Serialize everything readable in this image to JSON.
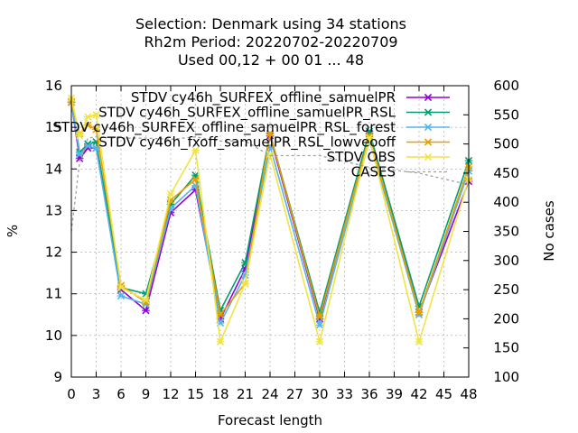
{
  "chart_data": {
    "type": "line",
    "title_lines": [
      "Selection: Denmark using    34 stations",
      "Rh2m   Period: 20220702-20220709",
      "Used  00,12  + 00 01 ... 48"
    ],
    "xlabel": "Forecast length",
    "ylabel": "%",
    "y2label": "No cases",
    "xlim": [
      0,
      48
    ],
    "ylim": [
      9,
      16
    ],
    "y2lim": [
      100,
      600
    ],
    "xticks": [
      0,
      3,
      6,
      9,
      12,
      15,
      18,
      21,
      24,
      27,
      30,
      33,
      36,
      39,
      42,
      45,
      48
    ],
    "yticks": [
      9,
      10,
      11,
      12,
      13,
      14,
      15,
      16
    ],
    "y2ticks": [
      100,
      150,
      200,
      250,
      300,
      350,
      400,
      450,
      500,
      550,
      600
    ],
    "legend_position": "top-right",
    "x": [
      0,
      1,
      2,
      3,
      6,
      9,
      12,
      15,
      18,
      21,
      24,
      30,
      36,
      42,
      48
    ],
    "series": [
      {
        "name": "STDV cy46h_SURFEX_offline_SamuelPR",
        "legend_label": "STDV cy46h_SURFEX_offline_samuelPR",
        "color": "#9400d3",
        "marker": "x",
        "values": [
          15.6,
          14.25,
          14.5,
          14.5,
          11.1,
          10.6,
          12.95,
          13.5,
          10.4,
          11.6,
          14.8,
          10.4,
          14.85,
          10.55,
          13.7
        ]
      },
      {
        "name": "STDV cy46h_SURFEX_offline_SamuelPR_RSL",
        "legend_label": "STDV cy46h_SURFEX_offline_samuelPR_RSL",
        "color": "#009e73",
        "marker": "x",
        "values": [
          15.6,
          14.4,
          14.6,
          14.65,
          11.15,
          11.0,
          13.15,
          13.85,
          10.6,
          11.75,
          14.85,
          10.55,
          14.9,
          10.7,
          14.2
        ]
      },
      {
        "name": "STDV cy46h_SURFEX_offline_SamuelPR_RSL_forest",
        "legend_label": "STDV cy46h_SURFEX_offline_samuelPR_RSL_forest",
        "color": "#56b4e9",
        "marker": "x",
        "values": [
          15.6,
          14.35,
          14.55,
          14.5,
          10.95,
          10.75,
          13.05,
          13.6,
          10.3,
          11.45,
          14.55,
          10.25,
          14.7,
          10.5,
          13.95
        ]
      },
      {
        "name": "STDV cy46h_fxoff_SamuelPR_RSL_lowveooff",
        "legend_label": "STDV cy46h_fxoff_samuelPR_RSL_lowveooff",
        "color": "#e69f00",
        "marker": "x",
        "values": [
          15.6,
          14.85,
          15.05,
          14.95,
          11.2,
          10.8,
          13.25,
          13.75,
          10.5,
          11.25,
          14.85,
          10.45,
          14.8,
          10.55,
          14.05
        ]
      },
      {
        "name": "STDV OBS",
        "legend_label": "STDV OBS",
        "color": "#f0e442",
        "marker": "x",
        "values": [
          15.7,
          14.8,
          15.25,
          15.3,
          11.15,
          10.85,
          13.4,
          14.45,
          9.85,
          11.25,
          14.35,
          9.85,
          14.75,
          9.85,
          13.75
        ]
      },
      {
        "name": "CASES",
        "legend_label": "CASES",
        "color": "#a0a0a0",
        "marker": "none",
        "axis": "y2",
        "x": [
          0,
          1,
          2,
          3,
          6,
          9,
          12,
          15,
          18,
          21,
          24,
          30,
          36,
          42,
          48
        ],
        "values": [
          350,
          470,
          510,
          512,
          510,
          510,
          508,
          512,
          505,
          505,
          480,
          480,
          460,
          450,
          430
        ]
      }
    ]
  }
}
